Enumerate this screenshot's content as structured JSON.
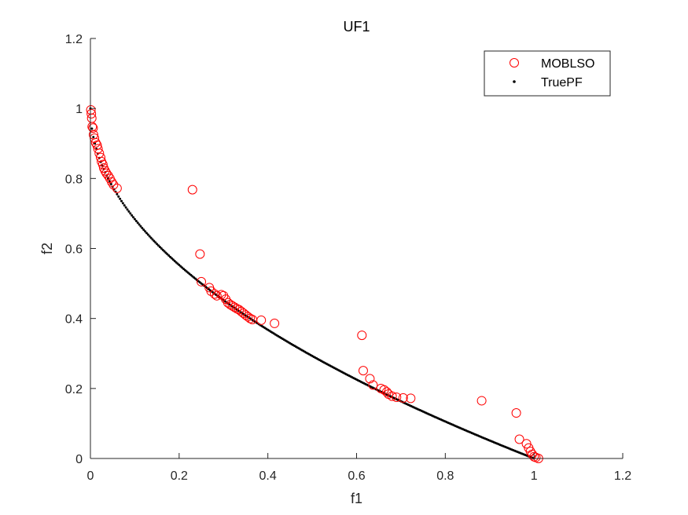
{
  "chart_data": {
    "type": "scatter",
    "title": "UF1",
    "xlabel": "f1",
    "ylabel": "f2",
    "xlim": [
      0,
      1.2
    ],
    "ylim": [
      0,
      1.2
    ],
    "xticks": [
      "0",
      "0.2",
      "0.4",
      "0.6",
      "0.8",
      "1",
      "1.2"
    ],
    "yticks": [
      "0",
      "0.2",
      "0.4",
      "0.6",
      "0.8",
      "1",
      "1.2"
    ],
    "grid": false,
    "legend_position": "top-right",
    "series": [
      {
        "name": "MOBLSO",
        "marker": "circle",
        "color": "#ff0000",
        "points": [
          [
            0.001,
            0.996
          ],
          [
            0.002,
            0.985
          ],
          [
            0.003,
            0.972
          ],
          [
            0.004,
            0.948
          ],
          [
            0.006,
            0.944
          ],
          [
            0.007,
            0.925
          ],
          [
            0.009,
            0.915
          ],
          [
            0.012,
            0.902
          ],
          [
            0.015,
            0.895
          ],
          [
            0.017,
            0.885
          ],
          [
            0.02,
            0.872
          ],
          [
            0.023,
            0.86
          ],
          [
            0.025,
            0.848
          ],
          [
            0.028,
            0.84
          ],
          [
            0.03,
            0.83
          ],
          [
            0.033,
            0.822
          ],
          [
            0.036,
            0.815
          ],
          [
            0.04,
            0.808
          ],
          [
            0.044,
            0.8
          ],
          [
            0.048,
            0.79
          ],
          [
            0.052,
            0.782
          ],
          [
            0.06,
            0.772
          ],
          [
            0.23,
            0.768
          ],
          [
            0.247,
            0.584
          ],
          [
            0.25,
            0.505
          ],
          [
            0.268,
            0.488
          ],
          [
            0.272,
            0.478
          ],
          [
            0.28,
            0.47
          ],
          [
            0.285,
            0.465
          ],
          [
            0.295,
            0.468
          ],
          [
            0.3,
            0.465
          ],
          [
            0.305,
            0.455
          ],
          [
            0.31,
            0.445
          ],
          [
            0.315,
            0.44
          ],
          [
            0.32,
            0.436
          ],
          [
            0.325,
            0.432
          ],
          [
            0.33,
            0.428
          ],
          [
            0.335,
            0.425
          ],
          [
            0.34,
            0.42
          ],
          [
            0.345,
            0.415
          ],
          [
            0.35,
            0.41
          ],
          [
            0.355,
            0.405
          ],
          [
            0.36,
            0.4
          ],
          [
            0.365,
            0.397
          ],
          [
            0.385,
            0.395
          ],
          [
            0.415,
            0.386
          ],
          [
            0.612,
            0.352
          ],
          [
            0.615,
            0.251
          ],
          [
            0.63,
            0.228
          ],
          [
            0.637,
            0.21
          ],
          [
            0.655,
            0.2
          ],
          [
            0.662,
            0.196
          ],
          [
            0.668,
            0.19
          ],
          [
            0.672,
            0.184
          ],
          [
            0.68,
            0.178
          ],
          [
            0.69,
            0.175
          ],
          [
            0.705,
            0.173
          ],
          [
            0.722,
            0.172
          ],
          [
            0.882,
            0.165
          ],
          [
            0.96,
            0.13
          ],
          [
            0.967,
            0.055
          ],
          [
            0.983,
            0.042
          ],
          [
            0.988,
            0.03
          ],
          [
            0.992,
            0.02
          ],
          [
            0.996,
            0.012
          ],
          [
            1.0,
            0.005
          ],
          [
            1.004,
            0.003
          ],
          [
            1.01,
            0.0
          ]
        ]
      },
      {
        "name": "TruePF",
        "marker": "dot",
        "color": "#000000",
        "generator": "f2 = 1 - sqrt(f1)",
        "x_start": 0,
        "x_end": 1,
        "count": 301
      }
    ]
  }
}
